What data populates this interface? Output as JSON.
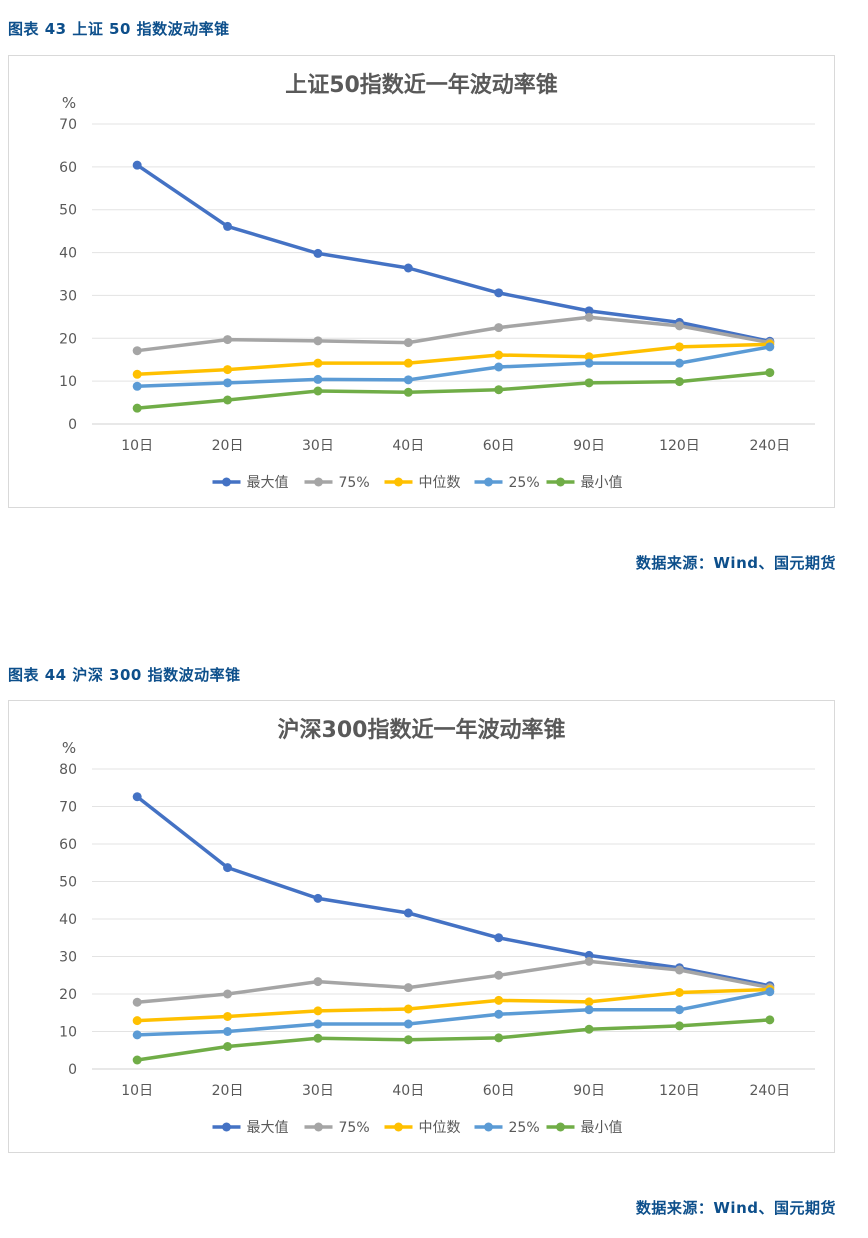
{
  "figures": [
    {
      "caption": "图表 43  上证 50 指数波动率锥",
      "source": "数据来源：Wind、国元期货",
      "chart_data": {
        "type": "line",
        "title": "上证50指数近一年波动率锥",
        "ylabel": "%",
        "ylim": [
          0,
          70
        ],
        "yticks": [
          0,
          10,
          20,
          30,
          40,
          50,
          60,
          70
        ],
        "grid": true,
        "legend_position": "bottom",
        "categories": [
          "10日",
          "20日",
          "30日",
          "40日",
          "60日",
          "90日",
          "120日",
          "240日"
        ],
        "series": [
          {
            "name": "最大值",
            "color": "#4472c4",
            "values": [
              60.4,
              46.1,
              39.8,
              36.4,
              30.6,
              26.4,
              23.7,
              19.3
            ]
          },
          {
            "name": "75%",
            "color": "#a5a5a5",
            "values": [
              17.1,
              19.7,
              19.4,
              19.0,
              22.5,
              24.9,
              22.9,
              19.0
            ]
          },
          {
            "name": "中位数",
            "color": "#ffc000",
            "values": [
              11.6,
              12.7,
              14.2,
              14.2,
              16.1,
              15.7,
              18.0,
              18.6
            ]
          },
          {
            "name": "25%",
            "color": "#5b9bd5",
            "values": [
              8.8,
              9.6,
              10.4,
              10.3,
              13.3,
              14.2,
              14.2,
              18.0
            ]
          },
          {
            "name": "最小值",
            "color": "#70ad47",
            "values": [
              3.7,
              5.6,
              7.7,
              7.4,
              8.0,
              9.6,
              9.9,
              12.0
            ]
          }
        ]
      }
    },
    {
      "caption": "图表 44  沪深 300 指数波动率锥",
      "source": "数据来源：Wind、国元期货",
      "chart_data": {
        "type": "line",
        "title": "沪深300指数近一年波动率锥",
        "ylabel": "%",
        "ylim": [
          0,
          80
        ],
        "yticks": [
          0,
          10,
          20,
          30,
          40,
          50,
          60,
          70,
          80
        ],
        "grid": true,
        "legend_position": "bottom",
        "categories": [
          "10日",
          "20日",
          "30日",
          "40日",
          "60日",
          "90日",
          "120日",
          "240日"
        ],
        "series": [
          {
            "name": "最大值",
            "color": "#4472c4",
            "values": [
              72.6,
              53.7,
              45.5,
              41.6,
              35.0,
              30.3,
              27.0,
              22.2
            ]
          },
          {
            "name": "75%",
            "color": "#a5a5a5",
            "values": [
              17.8,
              20.0,
              23.3,
              21.7,
              25.0,
              28.7,
              26.4,
              21.7
            ]
          },
          {
            "name": "中位数",
            "color": "#ffc000",
            "values": [
              12.9,
              14.0,
              15.5,
              16.0,
              18.3,
              17.9,
              20.4,
              21.2
            ]
          },
          {
            "name": "25%",
            "color": "#5b9bd5",
            "values": [
              9.1,
              10.0,
              12.0,
              12.0,
              14.6,
              15.8,
              15.8,
              20.6
            ]
          },
          {
            "name": "最小值",
            "color": "#70ad47",
            "values": [
              2.4,
              6.0,
              8.2,
              7.8,
              8.3,
              10.6,
              11.5,
              13.1
            ]
          }
        ]
      }
    }
  ]
}
